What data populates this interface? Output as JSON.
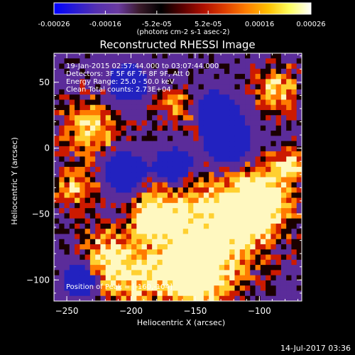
{
  "chart_data": {
    "type": "heatmap",
    "title": "Reconstructed RHESSI Image",
    "xlabel": "Heliocentric X (arcsec)",
    "ylabel": "Heliocentric Y (arcsec)",
    "xlim": [
      -260,
      -67
    ],
    "ylim": [
      -116,
      72
    ],
    "x_ticks": [
      -250,
      -200,
      -150,
      -100
    ],
    "y_ticks": [
      50,
      0,
      -50,
      -100
    ],
    "grid": false,
    "info_lines": [
      "19-Jan-2015 02:57:44.000 to 03:07:44.000",
      "Detectors: 3F 5F 6F 7F 8F 9F, Att 0",
      "Energy Range: 25.0 - 50.0 keV",
      "Clean      Total counts: 2.73E+04"
    ],
    "peak_label": "Position of Peak = [-160,-104]",
    "colorbar": {
      "range": [
        -0.00026,
        0.00026
      ],
      "tick_labels": [
        "-0.00026",
        "-0.00016",
        "-5.2e-05",
        "5.2e-05",
        "0.00016",
        "0.00026"
      ],
      "unit_label": "(photons cm-2 s-1 asec-2)",
      "colormap": [
        "#0000ff",
        "#2a1cd4",
        "#5530b0",
        "#6a3aa0",
        "#3a1a2a",
        "#000000",
        "#5a0000",
        "#b01000",
        "#e04000",
        "#ff8000",
        "#ffc000",
        "#ffff60",
        "#ffffff"
      ]
    },
    "map_colors": {
      "purple": "#5b2c9a",
      "blue": "#2222c0",
      "dark": "#1a0000",
      "red": "#cc1a00",
      "orange": "#ff7a00",
      "yellow": "#ffd030",
      "white": "#fff8c0"
    }
  },
  "footer": {
    "timestamp": "14-Jul-2017 03:36"
  }
}
